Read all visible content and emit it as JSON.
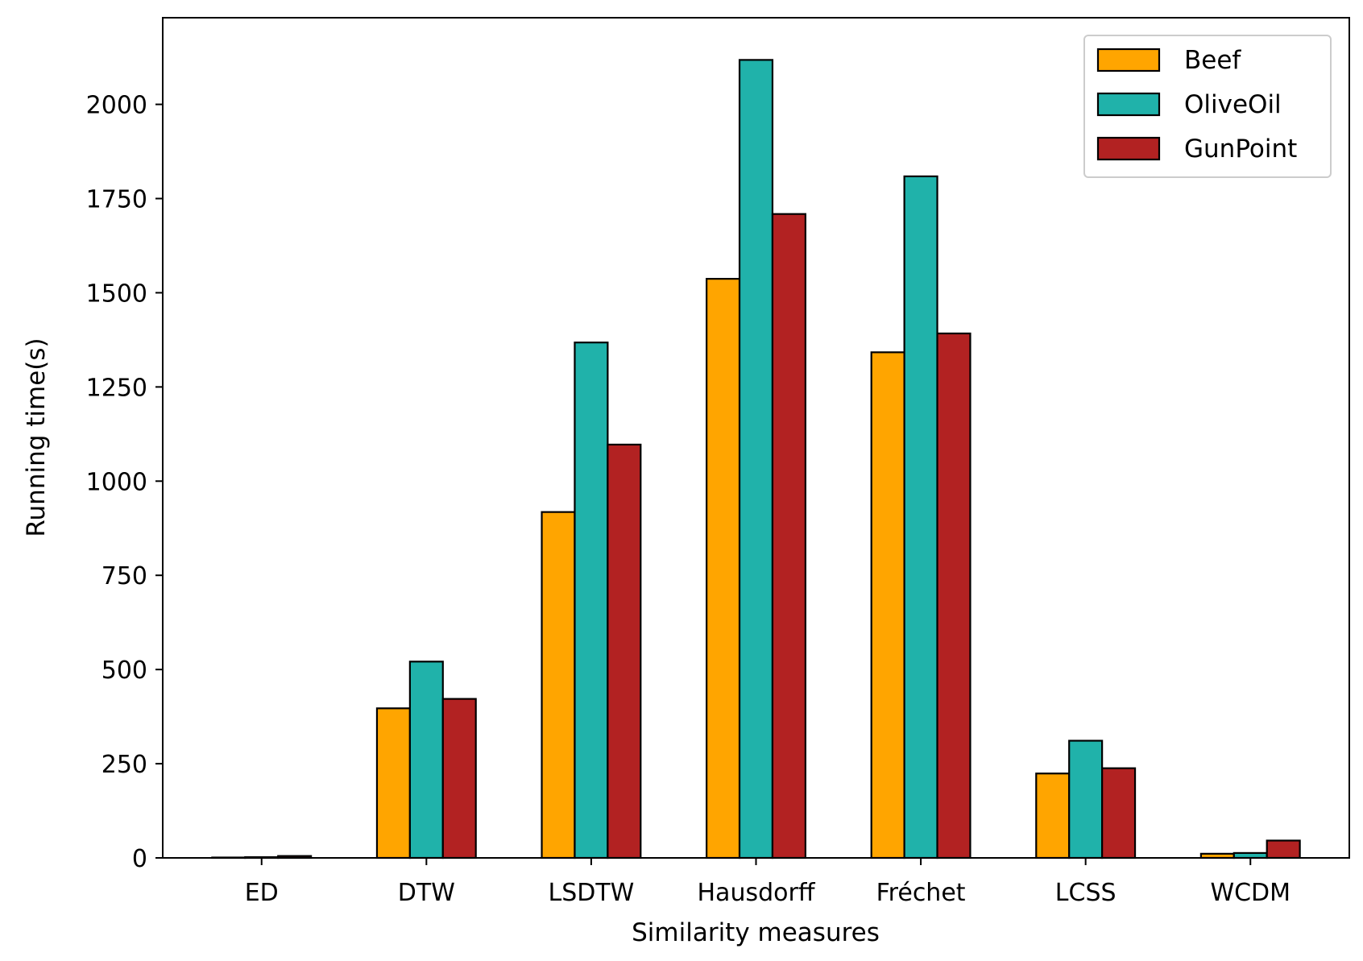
{
  "chart_data": {
    "type": "bar",
    "title": "",
    "xlabel": "Similarity measures",
    "ylabel": "Running time(s)",
    "categories": [
      "ED",
      "DTW",
      "LSDTW",
      "Hausdorff",
      "Fréchet",
      "LCSS",
      "WCDM"
    ],
    "series": [
      {
        "name": "Beef",
        "color": "#FFA500",
        "values": [
          1,
          397,
          918,
          1537,
          1342,
          224,
          11
        ]
      },
      {
        "name": "OliveOil",
        "color": "#20B2AA",
        "values": [
          2,
          521,
          1368,
          2118,
          1809,
          311,
          13
        ]
      },
      {
        "name": "GunPoint",
        "color": "#B22222",
        "values": [
          5,
          422,
          1097,
          1709,
          1392,
          238,
          46
        ]
      }
    ],
    "ylim": [
      0,
      2230
    ],
    "yticks": [
      0,
      250,
      500,
      750,
      1000,
      1250,
      1500,
      1750,
      2000
    ],
    "legend_position": "top-right",
    "grid": false
  }
}
